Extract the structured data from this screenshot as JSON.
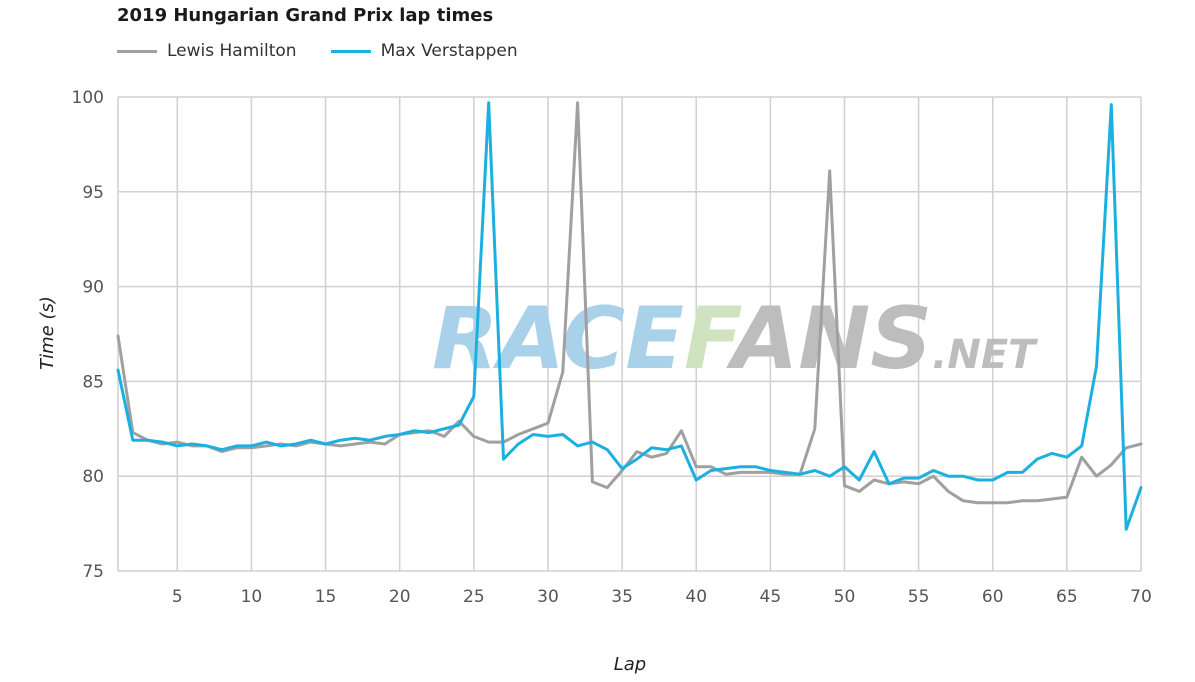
{
  "chart_data": {
    "type": "line",
    "title": "2019 Hungarian Grand Prix lap times",
    "xlabel": "Lap",
    "ylabel": "Time (s)",
    "xlim": [
      1,
      70
    ],
    "ylim": [
      75,
      100
    ],
    "x_ticks": [
      5,
      10,
      15,
      20,
      25,
      30,
      35,
      40,
      45,
      50,
      55,
      60,
      65,
      70
    ],
    "y_ticks": [
      75,
      80,
      85,
      90,
      95,
      100
    ],
    "grid": true,
    "legend_position": "top-left",
    "series": [
      {
        "name": "Lewis Hamilton",
        "color": "#a0a0a0",
        "values": [
          87.4,
          82.3,
          81.9,
          81.7,
          81.8,
          81.6,
          81.6,
          81.3,
          81.5,
          81.5,
          81.6,
          81.7,
          81.6,
          81.8,
          81.7,
          81.6,
          81.7,
          81.8,
          81.7,
          82.2,
          82.3,
          82.4,
          82.1,
          82.9,
          82.1,
          81.8,
          81.8,
          82.2,
          82.5,
          82.8,
          85.5,
          99.7,
          79.7,
          79.4,
          80.3,
          81.3,
          81.0,
          81.2,
          82.4,
          80.5,
          80.5,
          80.1,
          80.2,
          80.2,
          80.2,
          80.1,
          80.1,
          82.5,
          96.1,
          79.5,
          79.2,
          79.8,
          79.6,
          79.7,
          79.6,
          80.0,
          79.2,
          78.7,
          78.6,
          78.6,
          78.6,
          78.7,
          78.7,
          78.8,
          78.9,
          81.0,
          80.0,
          80.6,
          81.5,
          81.7
        ]
      },
      {
        "name": "Max Verstappen",
        "color": "#1cb0e0",
        "values": [
          85.6,
          81.9,
          81.9,
          81.8,
          81.6,
          81.7,
          81.6,
          81.4,
          81.6,
          81.6,
          81.8,
          81.6,
          81.7,
          81.9,
          81.7,
          81.9,
          82.0,
          81.9,
          82.1,
          82.2,
          82.4,
          82.3,
          82.5,
          82.7,
          84.2,
          99.7,
          80.9,
          81.7,
          82.2,
          82.1,
          82.2,
          81.6,
          81.8,
          81.4,
          80.4,
          80.9,
          81.5,
          81.4,
          81.6,
          79.8,
          80.3,
          80.4,
          80.5,
          80.5,
          80.3,
          80.2,
          80.1,
          80.3,
          80.0,
          80.5,
          79.8,
          81.3,
          79.6,
          79.9,
          79.9,
          80.3,
          80.0,
          80.0,
          79.8,
          79.8,
          80.2,
          80.2,
          80.9,
          81.2,
          81.0,
          81.6,
          85.8,
          99.6,
          77.2,
          79.4
        ]
      }
    ]
  },
  "watermark": {
    "main": "RACEFANS",
    "suffix": ".NET",
    "color_race": "#a9d2ea",
    "color_fans_f": "#cfe3c0",
    "color_rest": "#bdbdbd"
  }
}
